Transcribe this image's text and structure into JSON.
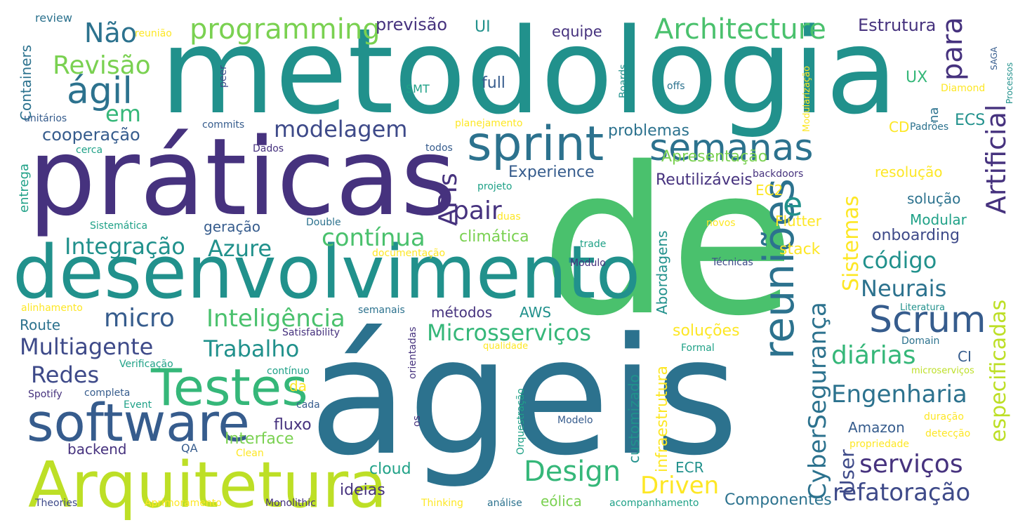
{
  "background": "#ffffff",
  "palette": {
    "dark_purple": "#46327e",
    "indigo": "#3e4a89",
    "blue": "#365c8d",
    "steel": "#2c728e",
    "teal": "#21918c",
    "green_teal": "#1fa187",
    "green": "#35b779",
    "light_green": "#4ac16d",
    "lime": "#7ad151",
    "yellow_green": "#bddf26",
    "yellow": "#fde725"
  },
  "words": [
    {
      "text": "metodologia",
      "color": "teal"
    },
    {
      "text": "práticas",
      "color": "dark_purple"
    },
    {
      "text": "de",
      "color": "light_green"
    },
    {
      "text": "ágeis",
      "color": "steel"
    },
    {
      "text": "desenvolvimento",
      "color": "teal"
    },
    {
      "text": "sprint",
      "color": "steel"
    },
    {
      "text": "semanas",
      "color": "steel"
    },
    {
      "text": "Arquitetura",
      "color": "yellow_green"
    },
    {
      "text": "software",
      "color": "blue"
    },
    {
      "text": "Testes",
      "color": "green"
    },
    {
      "text": "reuniões",
      "color": "steel"
    },
    {
      "text": "Scrum",
      "color": "blue"
    },
    {
      "text": "ágil",
      "color": "steel"
    },
    {
      "text": "Architecture",
      "color": "light_green"
    },
    {
      "text": "programming",
      "color": "lime"
    },
    {
      "text": "Não",
      "color": "steel"
    },
    {
      "text": "Revisão",
      "color": "lime"
    },
    {
      "text": "em",
      "color": "green"
    },
    {
      "text": "modelagem",
      "color": "indigo"
    },
    {
      "text": "previsão",
      "color": "dark_purple"
    },
    {
      "text": "UI",
      "color": "teal"
    },
    {
      "text": "equipe",
      "color": "dark_purple"
    },
    {
      "text": "Estrutura",
      "color": "dark_purple"
    },
    {
      "text": "para",
      "color": "dark_purple"
    },
    {
      "text": "e",
      "color": "teal"
    },
    {
      "text": "Artificial",
      "color": "dark_purple"
    },
    {
      "text": "APIs",
      "color": "dark_purple"
    },
    {
      "text": "pair",
      "color": "dark_purple"
    },
    {
      "text": "contínua",
      "color": "light_green"
    },
    {
      "text": "Integração",
      "color": "teal"
    },
    {
      "text": "Azure",
      "color": "teal"
    },
    {
      "text": "micro",
      "color": "blue"
    },
    {
      "text": "Inteligência",
      "color": "light_green"
    },
    {
      "text": "Multiagente",
      "color": "indigo"
    },
    {
      "text": "Microsserviços",
      "color": "green"
    },
    {
      "text": "Redes",
      "color": "indigo"
    },
    {
      "text": "Trabalho",
      "color": "teal"
    },
    {
      "text": "Design",
      "color": "green"
    },
    {
      "text": "Driven",
      "color": "yellow"
    },
    {
      "text": "serviços",
      "color": "dark_purple"
    },
    {
      "text": "refatoração",
      "color": "indigo"
    },
    {
      "text": "Engenharia",
      "color": "steel"
    },
    {
      "text": "especificadas",
      "color": "yellow_green"
    },
    {
      "text": "diárias",
      "color": "green"
    },
    {
      "text": "CyberSegurança",
      "color": "steel"
    },
    {
      "text": "Neurais",
      "color": "steel"
    },
    {
      "text": "código",
      "color": "teal"
    },
    {
      "text": "Sistemas",
      "color": "yellow"
    },
    {
      "text": "User",
      "color": "indigo"
    },
    {
      "text": "cooperação",
      "color": "blue"
    },
    {
      "text": "Containers",
      "color": "steel"
    },
    {
      "text": "review",
      "color": "steel"
    },
    {
      "text": "reunião",
      "color": "yellow"
    },
    {
      "text": "full",
      "color": "blue"
    },
    {
      "text": "UX",
      "color": "green"
    },
    {
      "text": "ECS",
      "color": "teal"
    },
    {
      "text": "CD",
      "color": "yellow"
    },
    {
      "text": "na",
      "color": "steel"
    },
    {
      "text": "problemas",
      "color": "steel"
    },
    {
      "text": "Apresentação",
      "color": "lime"
    },
    {
      "text": "Experience",
      "color": "blue"
    },
    {
      "text": "Reutilizáveis",
      "color": "dark_purple"
    },
    {
      "text": "resolução",
      "color": "yellow"
    },
    {
      "text": "EC2",
      "color": "yellow"
    },
    {
      "text": "solução",
      "color": "steel"
    },
    {
      "text": "Modular",
      "color": "green_teal"
    },
    {
      "text": "onboarding",
      "color": "indigo"
    },
    {
      "text": "Flutter",
      "color": "yellow"
    },
    {
      "text": "stack",
      "color": "yellow"
    },
    {
      "text": "climática",
      "color": "lime"
    },
    {
      "text": "geração",
      "color": "blue"
    },
    {
      "text": "Abordagens",
      "color": "teal"
    },
    {
      "text": "AWS",
      "color": "teal"
    },
    {
      "text": "métodos",
      "color": "dark_purple"
    },
    {
      "text": "soluções",
      "color": "yellow"
    },
    {
      "text": "customizado",
      "color": "teal"
    },
    {
      "text": "infraestrutura",
      "color": "yellow"
    },
    {
      "text": "ECR",
      "color": "teal"
    },
    {
      "text": "fluxo",
      "color": "dark_purple"
    },
    {
      "text": "Interface",
      "color": "lime"
    },
    {
      "text": "da",
      "color": "yellow"
    },
    {
      "text": "Amazon",
      "color": "blue"
    },
    {
      "text": "CI",
      "color": "blue"
    },
    {
      "text": "Route",
      "color": "steel"
    },
    {
      "text": "backend",
      "color": "dark_purple"
    },
    {
      "text": "QA",
      "color": "blue"
    },
    {
      "text": "cloud",
      "color": "green_teal"
    },
    {
      "text": "ideias",
      "color": "dark_purple"
    },
    {
      "text": "eólica",
      "color": "lime"
    },
    {
      "text": "Componentes",
      "color": "steel"
    },
    {
      "text": "entrega",
      "color": "green_teal"
    },
    {
      "text": "unitários",
      "color": "blue"
    },
    {
      "text": "cerca",
      "color": "green_teal"
    },
    {
      "text": "commits",
      "color": "blue"
    },
    {
      "text": "Dados",
      "color": "dark_purple"
    },
    {
      "text": "todos",
      "color": "blue"
    },
    {
      "text": "planejamento",
      "color": "yellow"
    },
    {
      "text": "SMT",
      "color": "green_teal"
    },
    {
      "text": "peer",
      "color": "indigo"
    },
    {
      "text": "Boards",
      "color": "teal"
    },
    {
      "text": "offs",
      "color": "steel"
    },
    {
      "text": "Modularização",
      "color": "yellow"
    },
    {
      "text": "SAGA",
      "color": "blue"
    },
    {
      "text": "Processos",
      "color": "teal"
    },
    {
      "text": "Diamond",
      "color": "yellow"
    },
    {
      "text": "Padrões",
      "color": "steel"
    },
    {
      "text": "backdoors",
      "color": "dark_purple"
    },
    {
      "text": "projeto",
      "color": "green_teal"
    },
    {
      "text": "duas",
      "color": "yellow"
    },
    {
      "text": "Double",
      "color": "steel"
    },
    {
      "text": "Sistemática",
      "color": "green_teal"
    },
    {
      "text": "documentação",
      "color": "yellow"
    },
    {
      "text": "trade",
      "color": "green_teal"
    },
    {
      "text": "novos",
      "color": "yellow"
    },
    {
      "text": "Modulo",
      "color": "dark_purple"
    },
    {
      "text": "Técnicas",
      "color": "indigo"
    },
    {
      "text": "alinhamento",
      "color": "yellow"
    },
    {
      "text": "semanais",
      "color": "steel"
    },
    {
      "text": "Literatura",
      "color": "teal"
    },
    {
      "text": "Satisfability",
      "color": "dark_purple"
    },
    {
      "text": "qualidade",
      "color": "yellow"
    },
    {
      "text": "Domain",
      "color": "steel"
    },
    {
      "text": "orientadas",
      "color": "dark_purple"
    },
    {
      "text": "Formal",
      "color": "green_teal"
    },
    {
      "text": "Verificação",
      "color": "green_teal"
    },
    {
      "text": "contínuo",
      "color": "green_teal"
    },
    {
      "text": "microserviços",
      "color": "yellow_green"
    },
    {
      "text": "Spotify",
      "color": "dark_purple"
    },
    {
      "text": "completa",
      "color": "blue"
    },
    {
      "text": "Event",
      "color": "green_teal"
    },
    {
      "text": "cada",
      "color": "blue"
    },
    {
      "text": "os",
      "color": "dark_purple"
    },
    {
      "text": "Orquestração",
      "color": "green_teal"
    },
    {
      "text": "Modelo",
      "color": "blue"
    },
    {
      "text": "duração",
      "color": "yellow"
    },
    {
      "text": "detecção",
      "color": "yellow"
    },
    {
      "text": "Clean",
      "color": "yellow"
    },
    {
      "text": "propriedade",
      "color": "yellow"
    },
    {
      "text": "Theories",
      "color": "indigo"
    },
    {
      "text": "Aprimoramento",
      "color": "yellow"
    },
    {
      "text": "Monolithic",
      "color": "dark_purple"
    },
    {
      "text": "Thinking",
      "color": "yellow"
    },
    {
      "text": "análise",
      "color": "steel"
    },
    {
      "text": "acompanhamento",
      "color": "green_teal"
    }
  ]
}
